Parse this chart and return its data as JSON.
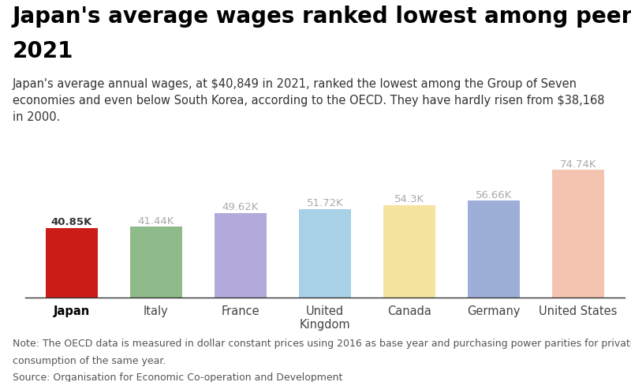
{
  "title_line1": "Japan's average wages ranked lowest among peers in",
  "title_line2": "2021",
  "subtitle": "Japan's average annual wages, at $40,849 in 2021, ranked the lowest among the Group of Seven\neconomies and even below South Korea, according to the OECD. They have hardly risen from $38,168\nin 2000.",
  "note_line1": "Note: The OECD data is measured in dollar constant prices using 2016 as base year and purchasing power parities for private",
  "note_line2": "consumption of the same year.",
  "note_line3": "Source: Organisation for Economic Co-operation and Development",
  "categories": [
    "Japan",
    "Italy",
    "France",
    "United\nKingdom",
    "Canada",
    "Germany",
    "United States"
  ],
  "values": [
    40.85,
    41.44,
    49.62,
    51.72,
    54.3,
    56.66,
    74.74
  ],
  "bar_colors": [
    "#cc1c17",
    "#8fba8a",
    "#b3aadb",
    "#a8d0e6",
    "#f5e4a0",
    "#9dafd8",
    "#f5c4b0"
  ],
  "label_color": "#aaaaaa",
  "japan_label_color": "#333333",
  "background_color": "#ffffff",
  "ylim": [
    0,
    85
  ],
  "bar_width": 0.62,
  "title_fontsize": 20,
  "subtitle_fontsize": 10.5,
  "note_fontsize": 9,
  "value_labels": [
    "40.85K",
    "41.44K",
    "49.62K",
    "51.72K",
    "54.3K",
    "56.66K",
    "74.74K"
  ]
}
